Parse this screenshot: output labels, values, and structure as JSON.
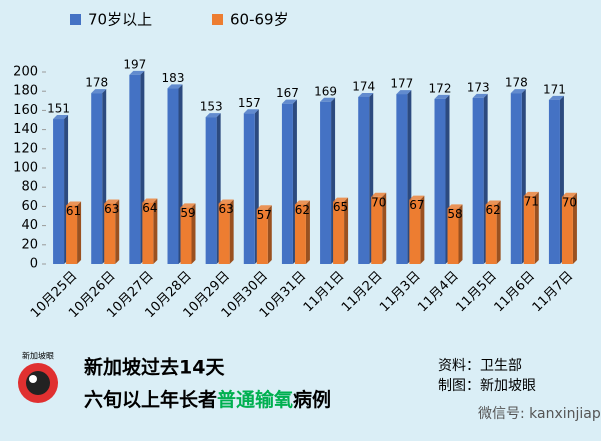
{
  "chart_data": {
    "type": "bar",
    "categories": [
      "10月25日",
      "10月26日",
      "10月27日",
      "10月28日",
      "10月29日",
      "10月30日",
      "10月31日",
      "11月1日",
      "11月2日",
      "11月3日",
      "11月4日",
      "11月5日",
      "11月6日",
      "11月7日"
    ],
    "series": [
      {
        "name": "70岁以上",
        "color": "#4472c4",
        "values": [
          151,
          178,
          197,
          183,
          153,
          157,
          167,
          169,
          174,
          177,
          172,
          173,
          178,
          171
        ]
      },
      {
        "name": "60-69岁",
        "color": "#ed7d31",
        "values": [
          61,
          63,
          64,
          59,
          63,
          57,
          62,
          65,
          70,
          67,
          58,
          62,
          71,
          70
        ]
      }
    ],
    "ylim": [
      0,
      200
    ],
    "yticks": [
      0,
      20,
      40,
      60,
      80,
      100,
      120,
      140,
      160,
      180,
      200
    ]
  },
  "footer": {
    "logo": "新加坡眼",
    "title_line1": "新加坡过去14天",
    "title_line2_a": "六旬以上年长者",
    "title_line2_highlight": "普通输氧",
    "title_line2_b": "病例",
    "source": "资料：卫生部",
    "credit": "制图：新加坡眼",
    "wechat": "微信号: kanxinjiapo"
  }
}
